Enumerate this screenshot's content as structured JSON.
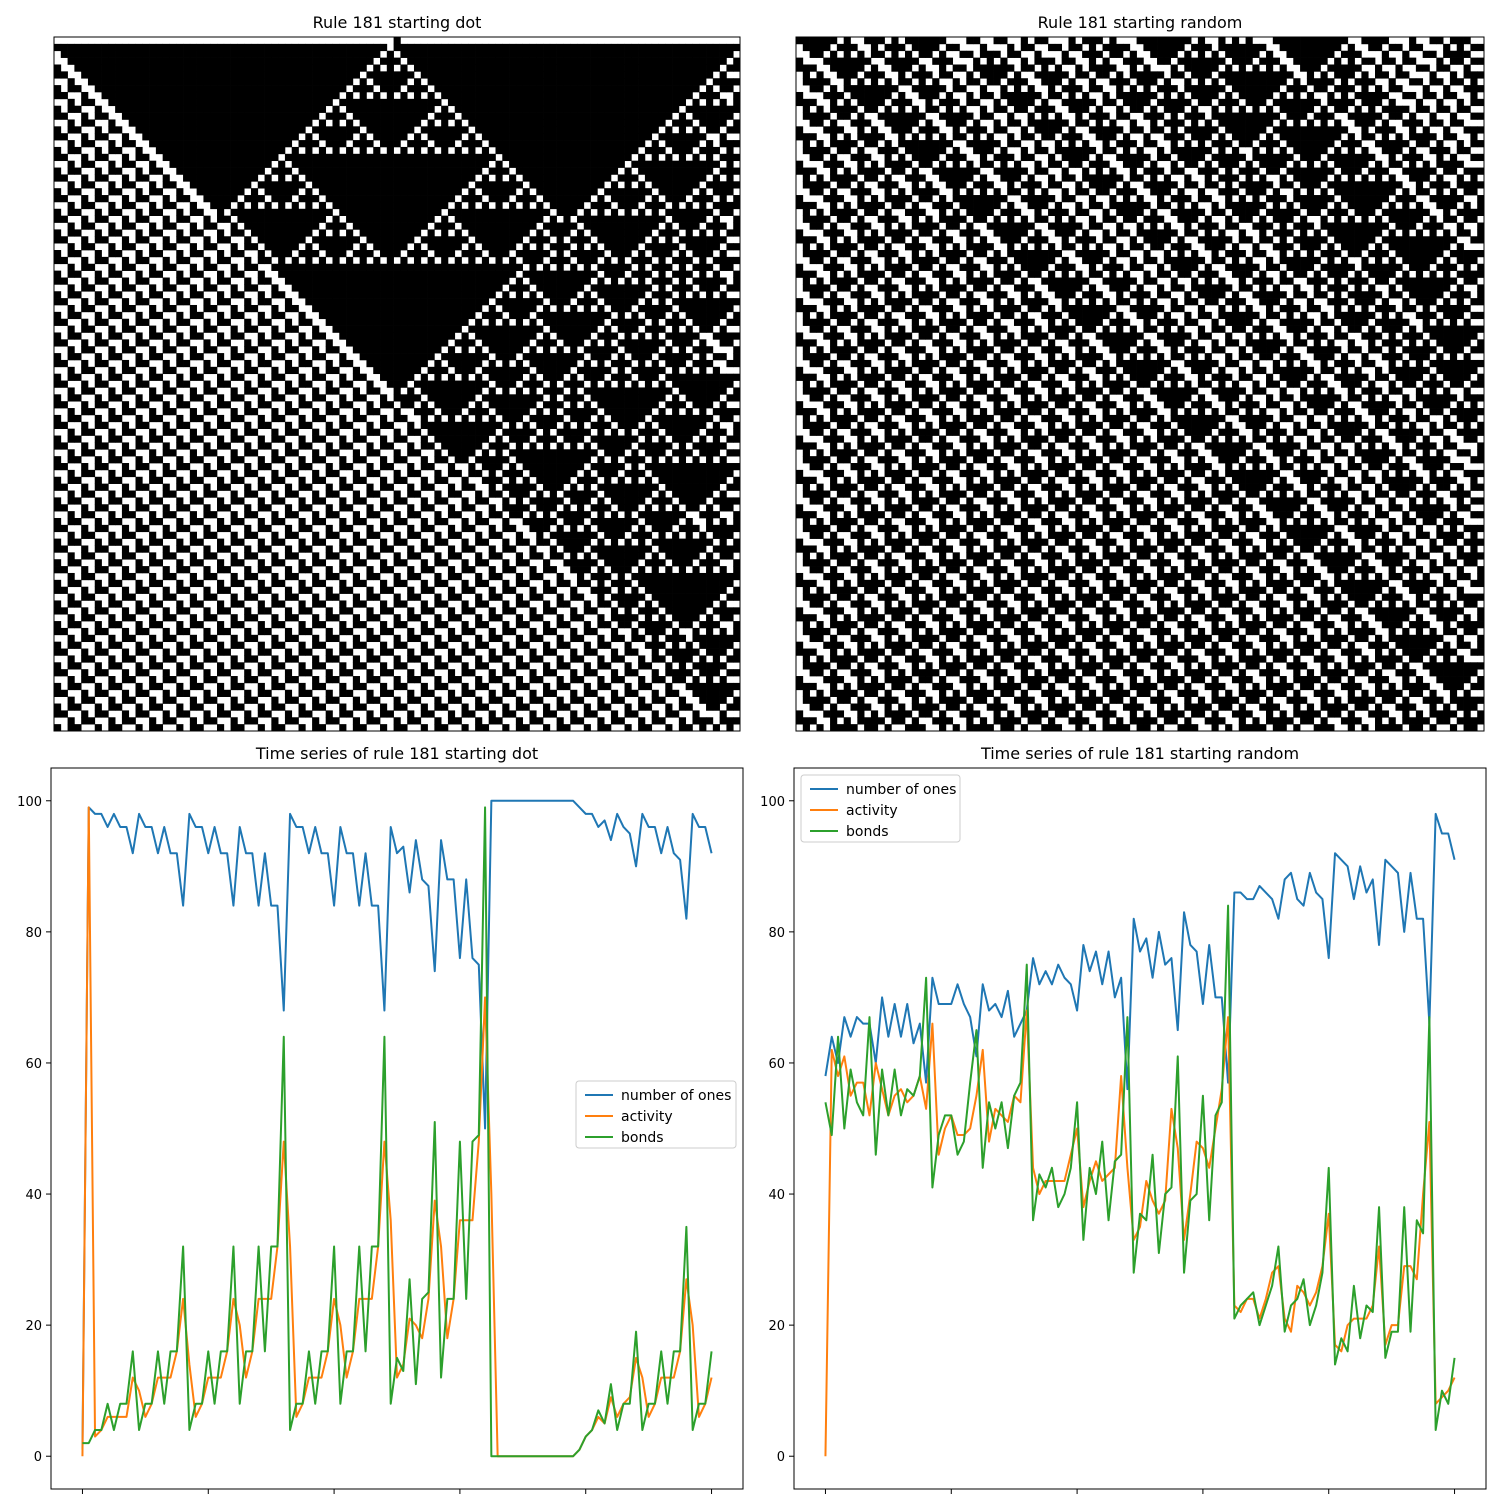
{
  "colors": {
    "number_of_ones": "#1f77b4",
    "activity": "#ff7f0e",
    "bonds": "#2ca02c",
    "cell_on": "#000000",
    "cell_off": "#ffffff"
  },
  "chart_data": [
    {
      "type": "heatmap",
      "title": "Rule 181 starting dot",
      "rule": 181,
      "grid": [
        101,
        101
      ],
      "initial_state": "dot",
      "axes_visible": false
    },
    {
      "type": "heatmap",
      "title": "Rule 181 starting random",
      "rule": 181,
      "grid": [
        101,
        101
      ],
      "initial_state": "random",
      "axes_visible": false
    },
    {
      "type": "line",
      "title": "Time series of rule 181 starting dot",
      "xlim": [
        -5,
        105
      ],
      "ylim": [
        -5,
        105
      ],
      "xticks": [
        0,
        20,
        40,
        60,
        80,
        100
      ],
      "yticks": [
        0,
        20,
        40,
        60,
        80,
        100
      ],
      "legend_position": "center-right",
      "series": [
        {
          "name": "number of ones",
          "values": [
            1,
            99,
            98,
            98,
            96,
            98,
            96,
            96,
            92,
            98,
            96,
            96,
            92,
            96,
            92,
            92,
            84,
            98,
            96,
            96,
            92,
            96,
            92,
            92,
            84,
            96,
            92,
            92,
            84,
            92,
            84,
            84,
            68,
            98,
            96,
            96,
            92,
            96,
            92,
            92,
            84,
            96,
            92,
            92,
            84,
            92,
            84,
            84,
            68,
            96,
            92,
            93,
            86,
            94,
            88,
            87,
            74,
            94,
            88,
            88,
            76,
            88,
            76,
            75,
            50,
            100,
            100,
            100,
            100,
            100,
            100,
            100,
            100,
            100,
            100,
            100,
            100,
            100,
            100,
            99,
            98,
            98,
            96,
            97,
            94,
            98,
            96,
            95,
            90,
            98,
            96,
            96,
            92,
            96,
            92,
            91,
            82,
            98,
            96,
            96,
            92
          ]
        },
        {
          "name": "activity",
          "values": [
            0,
            99,
            3,
            4,
            6,
            6,
            6,
            6,
            12,
            10,
            6,
            8,
            12,
            12,
            12,
            16,
            24,
            14,
            6,
            8,
            12,
            12,
            12,
            16,
            24,
            20,
            12,
            16,
            24,
            24,
            24,
            32,
            48,
            32,
            6,
            8,
            12,
            12,
            12,
            16,
            24,
            20,
            12,
            16,
            24,
            24,
            24,
            32,
            48,
            36,
            12,
            14,
            21,
            20,
            18,
            24,
            39,
            32,
            18,
            24,
            36,
            36,
            36,
            48,
            70,
            40,
            0,
            0,
            0,
            0,
            0,
            0,
            0,
            0,
            0,
            0,
            0,
            0,
            0,
            1,
            3,
            4,
            6,
            5,
            9,
            6,
            8,
            9,
            15,
            12,
            6,
            8,
            12,
            12,
            12,
            16,
            27,
            20,
            6,
            8,
            12
          ]
        },
        {
          "name": "bonds",
          "values": [
            2,
            2,
            4,
            4,
            8,
            4,
            8,
            8,
            16,
            4,
            8,
            8,
            16,
            8,
            16,
            16,
            32,
            4,
            8,
            8,
            16,
            8,
            16,
            16,
            32,
            8,
            16,
            16,
            32,
            16,
            32,
            32,
            64,
            4,
            8,
            8,
            16,
            8,
            16,
            16,
            32,
            8,
            16,
            16,
            32,
            16,
            32,
            32,
            64,
            8,
            15,
            13,
            27,
            11,
            24,
            25,
            51,
            12,
            24,
            24,
            48,
            24,
            48,
            49,
            99,
            0,
            0,
            0,
            0,
            0,
            0,
            0,
            0,
            0,
            0,
            0,
            0,
            0,
            0,
            1,
            3,
            4,
            7,
            5,
            11,
            4,
            8,
            8,
            19,
            4,
            8,
            8,
            16,
            8,
            16,
            16,
            35,
            4,
            8,
            8,
            16
          ]
        }
      ]
    },
    {
      "type": "line",
      "title": "Time series of rule 181 starting random",
      "xlim": [
        -5,
        105
      ],
      "ylim": [
        -5,
        105
      ],
      "xticks": [
        0,
        20,
        40,
        60,
        80,
        100
      ],
      "yticks": [
        0,
        20,
        40,
        60,
        80,
        100
      ],
      "legend_position": "top-left",
      "series": [
        {
          "name": "number of ones",
          "values": [
            58,
            64,
            60,
            67,
            64,
            67,
            66,
            66,
            60,
            70,
            64,
            69,
            64,
            69,
            63,
            66,
            57,
            73,
            69,
            69,
            69,
            72,
            69,
            67,
            61,
            72,
            68,
            69,
            67,
            71,
            64,
            66,
            68,
            76,
            72,
            74,
            72,
            75,
            73,
            72,
            68,
            78,
            74,
            77,
            72,
            77,
            70,
            73,
            56,
            82,
            77,
            79,
            73,
            80,
            75,
            76,
            65,
            83,
            78,
            77,
            69,
            78,
            70,
            70,
            57,
            86,
            86,
            85,
            85,
            87,
            86,
            85,
            82,
            88,
            89,
            85,
            84,
            89,
            86,
            85,
            76,
            92,
            91,
            90,
            85,
            90,
            86,
            88,
            78,
            91,
            90,
            89,
            80,
            89,
            82,
            82,
            66,
            98,
            95,
            95,
            91
          ]
        },
        {
          "name": "activity",
          "values": [
            0,
            62,
            58,
            61,
            55,
            57,
            57,
            52,
            60,
            56,
            52,
            55,
            56,
            54,
            55,
            58,
            53,
            66,
            46,
            50,
            52,
            49,
            49,
            50,
            55,
            62,
            48,
            53,
            52,
            51,
            55,
            54,
            68,
            44,
            40,
            42,
            42,
            42,
            42,
            46,
            50,
            38,
            42,
            45,
            42,
            43,
            44,
            58,
            44,
            33,
            35,
            42,
            39,
            37,
            39,
            53,
            47,
            33,
            40,
            48,
            47,
            44,
            50,
            56,
            67,
            23,
            22,
            24,
            24,
            21,
            24,
            28,
            29,
            21,
            19,
            26,
            25,
            23,
            25,
            29,
            37,
            17,
            16,
            20,
            21,
            21,
            21,
            23,
            32,
            17,
            20,
            20,
            29,
            29,
            27,
            40,
            51,
            8,
            9,
            10,
            12
          ]
        },
        {
          "name": "bonds",
          "values": [
            54,
            49,
            64,
            50,
            59,
            54,
            52,
            67,
            46,
            59,
            52,
            59,
            52,
            56,
            55,
            58,
            73,
            41,
            49,
            52,
            52,
            46,
            48,
            57,
            65,
            44,
            54,
            50,
            54,
            47,
            55,
            57,
            75,
            36,
            43,
            41,
            44,
            38,
            40,
            44,
            54,
            33,
            44,
            40,
            48,
            36,
            45,
            46,
            67,
            28,
            37,
            36,
            46,
            31,
            40,
            41,
            61,
            28,
            39,
            40,
            55,
            36,
            52,
            54,
            84,
            21,
            23,
            24,
            25,
            20,
            23,
            26,
            32,
            19,
            23,
            24,
            27,
            20,
            23,
            28,
            44,
            14,
            18,
            16,
            26,
            18,
            23,
            22,
            38,
            15,
            19,
            19,
            38,
            19,
            36,
            34,
            67,
            4,
            10,
            8,
            15
          ]
        }
      ]
    }
  ]
}
